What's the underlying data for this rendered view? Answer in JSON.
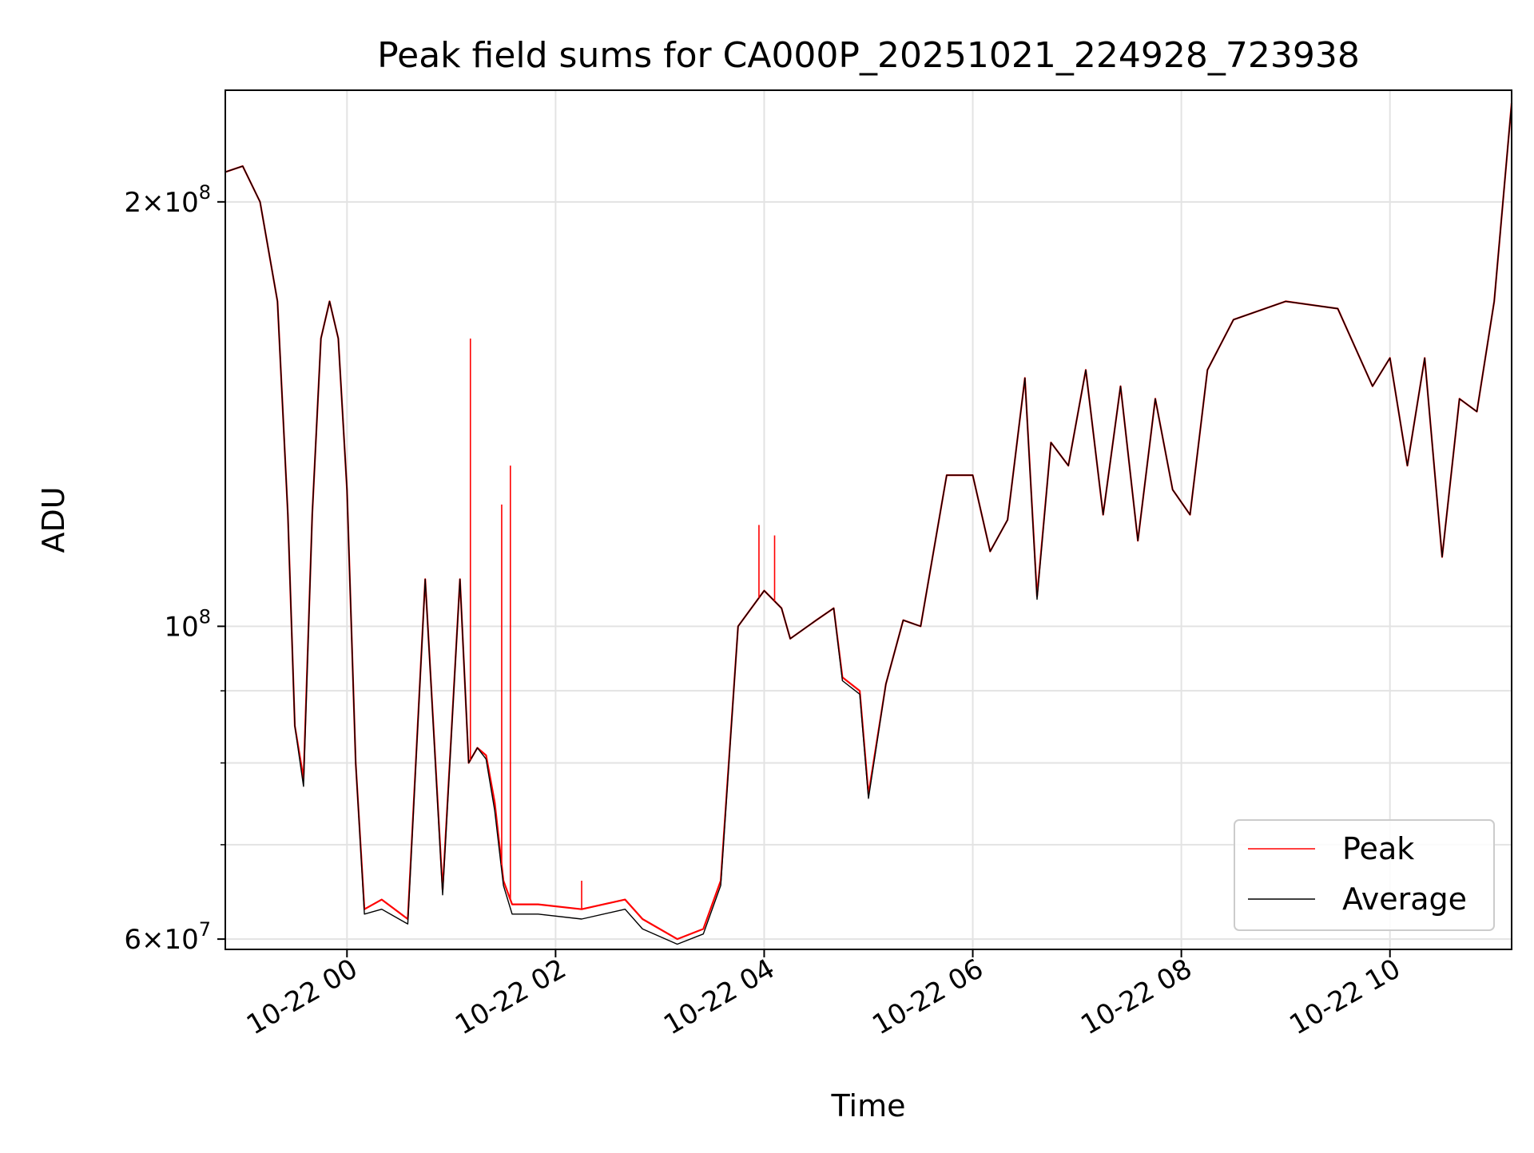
{
  "chart_data": {
    "type": "line",
    "title": "Peak field sums for CA000P_20251021_224928_723938",
    "xlabel": "Time",
    "ylabel": "ADU",
    "yscale": "log",
    "grid": true,
    "legend_position": "lower-right",
    "xlim": [
      "2025-10-21 22:50",
      "2025-10-22 11:10"
    ],
    "ylim": [
      59000000,
      240000000
    ],
    "x_ticks": [
      "10-22 00",
      "10-22 02",
      "10-22 04",
      "10-22 06",
      "10-22 08",
      "10-22 10"
    ],
    "x_tick_values": [
      "2025-10-22 00:00",
      "2025-10-22 02:00",
      "2025-10-22 04:00",
      "2025-10-22 06:00",
      "2025-10-22 08:00",
      "2025-10-22 10:00"
    ],
    "y_ticks": [
      {
        "value": 200000000,
        "mantissa": "2",
        "times": "×",
        "base": "10",
        "exp": "8"
      },
      {
        "value": 100000000,
        "mantissa": "",
        "times": "",
        "base": "10",
        "exp": "8"
      },
      {
        "value": 60000000,
        "mantissa": "6",
        "times": "×",
        "base": "10",
        "exp": "7"
      }
    ],
    "y_minor_ticks": [
      70000000,
      80000000,
      90000000
    ],
    "series": [
      {
        "name": "Peak",
        "color": "#ff0000",
        "x": [
          "2025-10-21 22:50",
          "2025-10-21 23:00",
          "2025-10-21 23:10",
          "2025-10-21 23:20",
          "2025-10-21 23:26",
          "2025-10-21 23:30",
          "2025-10-21 23:35",
          "2025-10-21 23:40",
          "2025-10-21 23:45",
          "2025-10-21 23:50",
          "2025-10-21 23:55",
          "2025-10-22 00:00",
          "2025-10-22 00:05",
          "2025-10-22 00:10",
          "2025-10-22 00:20",
          "2025-10-22 00:35",
          "2025-10-22 00:45",
          "2025-10-22 00:55",
          "2025-10-22 01:05",
          "2025-10-22 01:10",
          "2025-10-22 01:15",
          "2025-10-22 01:20",
          "2025-10-22 01:25",
          "2025-10-22 01:30",
          "2025-10-22 01:35",
          "2025-10-22 01:40",
          "2025-10-22 01:50",
          "2025-10-22 02:15",
          "2025-10-22 02:40",
          "2025-10-22 02:50",
          "2025-10-22 03:10",
          "2025-10-22 03:25",
          "2025-10-22 03:35",
          "2025-10-22 03:45",
          "2025-10-22 04:00",
          "2025-10-22 04:10",
          "2025-10-22 04:15",
          "2025-10-22 04:30",
          "2025-10-22 04:40",
          "2025-10-22 04:45",
          "2025-10-22 04:55",
          "2025-10-22 05:00",
          "2025-10-22 05:10",
          "2025-10-22 05:20",
          "2025-10-22 05:30",
          "2025-10-22 05:45",
          "2025-10-22 06:00",
          "2025-10-22 06:10",
          "2025-10-22 06:20",
          "2025-10-22 06:30",
          "2025-10-22 06:37",
          "2025-10-22 06:45",
          "2025-10-22 06:55",
          "2025-10-22 07:05",
          "2025-10-22 07:15",
          "2025-10-22 07:25",
          "2025-10-22 07:35",
          "2025-10-22 07:45",
          "2025-10-22 07:55",
          "2025-10-22 08:05",
          "2025-10-22 08:15",
          "2025-10-22 08:30",
          "2025-10-22 09:00",
          "2025-10-22 09:30",
          "2025-10-22 09:50",
          "2025-10-22 10:00",
          "2025-10-22 10:10",
          "2025-10-22 10:20",
          "2025-10-22 10:30",
          "2025-10-22 10:40",
          "2025-10-22 10:50",
          "2025-10-22 11:00",
          "2025-10-22 11:10"
        ],
        "y": [
          210000000,
          212000000,
          200000000,
          170000000,
          120000000,
          85000000,
          78000000,
          120000000,
          160000000,
          170000000,
          160000000,
          125000000,
          80000000,
          63000000,
          64000000,
          62000000,
          108000000,
          65000000,
          108000000,
          80000000,
          82000000,
          81000000,
          75000000,
          66000000,
          63500000,
          63500000,
          63500000,
          63000000,
          64000000,
          62000000,
          60000000,
          61000000,
          66000000,
          100000000,
          106000000,
          103000000,
          98000000,
          101000000,
          103000000,
          92000000,
          90000000,
          76000000,
          91000000,
          101000000,
          100000000,
          128000000,
          128000000,
          113000000,
          119000000,
          150000000,
          105000000,
          135000000,
          130000000,
          152000000,
          120000000,
          148000000,
          115000000,
          145000000,
          125000000,
          120000000,
          152000000,
          165000000,
          170000000,
          168000000,
          148000000,
          155000000,
          130000000,
          155000000,
          112000000,
          145000000,
          142000000,
          170000000,
          235000000
        ]
      },
      {
        "name": "Average",
        "color": "#000000",
        "x": [
          "2025-10-21 22:50",
          "2025-10-21 23:00",
          "2025-10-21 23:10",
          "2025-10-21 23:20",
          "2025-10-21 23:26",
          "2025-10-21 23:30",
          "2025-10-21 23:35",
          "2025-10-21 23:40",
          "2025-10-21 23:45",
          "2025-10-21 23:50",
          "2025-10-21 23:55",
          "2025-10-22 00:00",
          "2025-10-22 00:05",
          "2025-10-22 00:10",
          "2025-10-22 00:20",
          "2025-10-22 00:35",
          "2025-10-22 00:45",
          "2025-10-22 00:55",
          "2025-10-22 01:05",
          "2025-10-22 01:10",
          "2025-10-22 01:15",
          "2025-10-22 01:20",
          "2025-10-22 01:25",
          "2025-10-22 01:30",
          "2025-10-22 01:35",
          "2025-10-22 01:40",
          "2025-10-22 01:50",
          "2025-10-22 02:15",
          "2025-10-22 02:40",
          "2025-10-22 02:50",
          "2025-10-22 03:10",
          "2025-10-22 03:25",
          "2025-10-22 03:35",
          "2025-10-22 03:45",
          "2025-10-22 04:00",
          "2025-10-22 04:10",
          "2025-10-22 04:15",
          "2025-10-22 04:30",
          "2025-10-22 04:40",
          "2025-10-22 04:45",
          "2025-10-22 04:55",
          "2025-10-22 05:00",
          "2025-10-22 05:10",
          "2025-10-22 05:20",
          "2025-10-22 05:30",
          "2025-10-22 05:45",
          "2025-10-22 06:00",
          "2025-10-22 06:10",
          "2025-10-22 06:20",
          "2025-10-22 06:30",
          "2025-10-22 06:37",
          "2025-10-22 06:45",
          "2025-10-22 06:55",
          "2025-10-22 07:05",
          "2025-10-22 07:15",
          "2025-10-22 07:25",
          "2025-10-22 07:35",
          "2025-10-22 07:45",
          "2025-10-22 07:55",
          "2025-10-22 08:05",
          "2025-10-22 08:15",
          "2025-10-22 08:30",
          "2025-10-22 09:00",
          "2025-10-22 09:30",
          "2025-10-22 09:50",
          "2025-10-22 10:00",
          "2025-10-22 10:10",
          "2025-10-22 10:20",
          "2025-10-22 10:30",
          "2025-10-22 10:40",
          "2025-10-22 10:50",
          "2025-10-22 11:00",
          "2025-10-22 11:10"
        ],
        "y": [
          210000000,
          212000000,
          200000000,
          170000000,
          120000000,
          85000000,
          77000000,
          120000000,
          160000000,
          170000000,
          160000000,
          125000000,
          80000000,
          62500000,
          63000000,
          61500000,
          108000000,
          64500000,
          108000000,
          80000000,
          82000000,
          80500000,
          74000000,
          65500000,
          62500000,
          62500000,
          62500000,
          62000000,
          63000000,
          61000000,
          59500000,
          60500000,
          65500000,
          100000000,
          106000000,
          103000000,
          98000000,
          101000000,
          103000000,
          91500000,
          89500000,
          75500000,
          91000000,
          101000000,
          100000000,
          128000000,
          128000000,
          113000000,
          119000000,
          150000000,
          104500000,
          135000000,
          130000000,
          152000000,
          120000000,
          148000000,
          115000000,
          145000000,
          125000000,
          120000000,
          152000000,
          165000000,
          170000000,
          168000000,
          148000000,
          155000000,
          130000000,
          155000000,
          112000000,
          145000000,
          142000000,
          170000000,
          235000000
        ]
      }
    ],
    "peak_spikes": [
      {
        "x": "2025-10-22 01:11",
        "y": 160000000
      },
      {
        "x": "2025-10-22 01:29",
        "y": 122000000
      },
      {
        "x": "2025-10-22 01:34",
        "y": 130000000
      },
      {
        "x": "2025-10-22 02:15",
        "y": 66000000
      },
      {
        "x": "2025-10-22 03:57",
        "y": 118000000
      },
      {
        "x": "2025-10-22 04:06",
        "y": 116000000
      }
    ]
  }
}
